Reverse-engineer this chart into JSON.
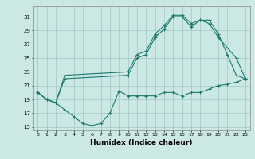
{
  "line1_x": [
    0,
    1,
    2,
    3,
    10,
    11,
    12,
    13,
    14,
    15,
    16,
    17,
    18,
    19,
    20,
    21,
    22,
    23
  ],
  "line1_y": [
    20,
    19,
    18.5,
    22.5,
    23,
    25.5,
    26,
    28.5,
    29.7,
    31.2,
    31.2,
    30,
    30.5,
    30.5,
    28.5,
    25.5,
    22.5,
    22
  ],
  "line2_x": [
    0,
    1,
    2,
    3,
    10,
    11,
    12,
    13,
    14,
    15,
    16,
    17,
    18,
    19,
    20,
    22,
    23
  ],
  "line2_y": [
    20,
    19,
    18.5,
    22,
    22.5,
    25,
    25.5,
    28,
    29.2,
    31,
    31,
    29.5,
    30.5,
    30,
    28,
    25,
    22
  ],
  "line3_x": [
    0,
    1,
    2,
    3,
    4,
    5,
    6,
    7,
    8,
    9,
    10,
    11,
    12,
    13,
    14,
    15,
    16,
    17,
    18,
    19,
    20,
    21,
    22,
    23
  ],
  "line3_y": [
    20,
    19,
    18.5,
    17.5,
    16.5,
    15.5,
    15.2,
    15.5,
    17,
    20.2,
    19.5,
    19.5,
    19.5,
    19.5,
    20,
    20,
    19.5,
    20,
    20,
    20.5,
    21,
    21.2,
    21.5,
    22
  ],
  "color": "#1a7a6e",
  "bg_color": "#cce8e5",
  "grid_color": "#9fc8c4",
  "xlabel": "Humidex (Indice chaleur)",
  "ylim": [
    14.5,
    32.5
  ],
  "xlim": [
    -0.5,
    23.5
  ],
  "yticks": [
    15,
    17,
    19,
    21,
    23,
    25,
    27,
    29,
    31
  ],
  "xticks": [
    0,
    1,
    2,
    3,
    4,
    5,
    6,
    7,
    8,
    9,
    10,
    11,
    12,
    13,
    14,
    15,
    16,
    17,
    18,
    19,
    20,
    21,
    22,
    23
  ],
  "xtick_labels": [
    "0",
    "1",
    "2",
    "3",
    "4",
    "5",
    "6",
    "7",
    "8",
    "9",
    "10",
    "11",
    "12",
    "13",
    "14",
    "15",
    "16",
    "17",
    "18",
    "19",
    "20",
    "21",
    "22",
    "23"
  ]
}
